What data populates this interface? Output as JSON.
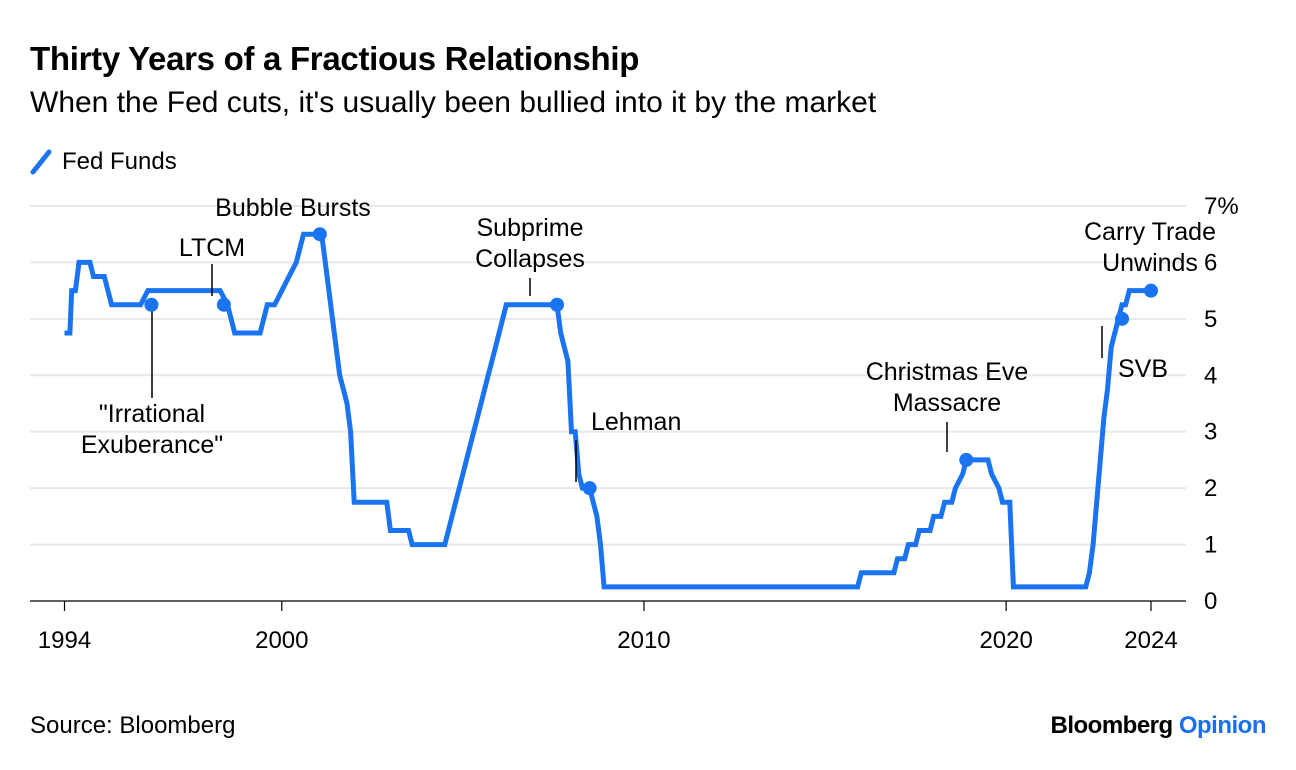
{
  "title": "Thirty Years of a Fractious Relationship",
  "subtitle": "When the Fed cuts, it's usually been bullied into it by the market",
  "legend_label": "Fed Funds",
  "source": "Source: Bloomberg",
  "brand": {
    "part1": "Bloomberg",
    "part2": "Opinion"
  },
  "colors": {
    "series": "#1a73f0",
    "grid": "#e8e8e8",
    "brand_accent": "#1a6ff0"
  },
  "chart_data": {
    "type": "line",
    "xlabel": "",
    "ylabel": "",
    "xlim": [
      1994,
      2025
    ],
    "ylim": [
      0,
      7
    ],
    "x_ticks": [
      1994,
      2000,
      2010,
      2020,
      2024
    ],
    "x_tick_labels": [
      "1994",
      "2000",
      "2010",
      "2020",
      "2024"
    ],
    "y_ticks": [
      0,
      1,
      2,
      3,
      4,
      5,
      6,
      7
    ],
    "y_tick_labels": [
      "0",
      "1",
      "2",
      "3",
      "4",
      "5",
      "6",
      "7%"
    ],
    "y_axis_side": "right",
    "grid": true,
    "series": [
      {
        "name": "Fed Funds",
        "x": [
          1994.0,
          1994.15,
          1994.2,
          1994.3,
          1994.4,
          1994.5,
          1994.7,
          1994.8,
          1995.1,
          1995.3,
          1995.5,
          1995.8,
          1996.1,
          1996.3,
          1997.2,
          1997.3,
          1998.3,
          1998.5,
          1998.6,
          1998.7,
          1998.8,
          1998.9,
          1999.4,
          1999.5,
          1999.6,
          1999.8,
          2000.0,
          2000.2,
          2000.4,
          2000.6,
          2000.8,
          2001.0,
          2001.1,
          2001.2,
          2001.3,
          2001.4,
          2001.5,
          2001.6,
          2001.7,
          2001.8,
          2001.9,
          2002.0,
          2002.9,
          2003.0,
          2003.5,
          2003.6,
          2004.5,
          2004.6,
          2004.7,
          2004.8,
          2004.9,
          2005.0,
          2005.1,
          2005.2,
          2005.3,
          2005.4,
          2005.5,
          2005.6,
          2005.7,
          2005.8,
          2005.9,
          2006.0,
          2006.1,
          2006.2,
          2006.3,
          2006.4,
          2006.5,
          2007.6,
          2007.7,
          2007.8,
          2007.9,
          2008.0,
          2008.1,
          2008.2,
          2008.3,
          2008.4,
          2008.5,
          2008.7,
          2008.8,
          2008.9,
          2008.95,
          2009.0,
          2015.9,
          2016.0,
          2016.9,
          2017.0,
          2017.2,
          2017.3,
          2017.5,
          2017.6,
          2017.9,
          2018.0,
          2018.2,
          2018.3,
          2018.5,
          2018.6,
          2018.8,
          2018.9,
          2019.0,
          2019.5,
          2019.6,
          2019.8,
          2019.9,
          2020.1,
          2020.2,
          2022.2,
          2022.3,
          2022.4,
          2022.5,
          2022.6,
          2022.7,
          2022.8,
          2022.9,
          2023.0,
          2023.1,
          2023.2,
          2023.3,
          2023.4,
          2023.5,
          2023.6,
          2024.0
        ],
        "values": [
          4.75,
          4.75,
          5.5,
          5.5,
          6.0,
          6.0,
          6.0,
          5.75,
          5.75,
          5.25,
          5.25,
          5.25,
          5.25,
          5.5,
          5.5,
          5.5,
          5.5,
          5.25,
          5.0,
          4.75,
          4.75,
          4.75,
          4.75,
          5.0,
          5.25,
          5.25,
          5.5,
          5.75,
          6.0,
          6.5,
          6.5,
          6.5,
          6.5,
          6.0,
          5.5,
          5.0,
          4.5,
          4.0,
          3.75,
          3.5,
          3.0,
          1.75,
          1.75,
          1.25,
          1.25,
          1.0,
          1.0,
          1.25,
          1.5,
          1.75,
          2.0,
          2.25,
          2.5,
          2.75,
          3.0,
          3.25,
          3.5,
          3.75,
          4.0,
          4.25,
          4.5,
          4.75,
          5.0,
          5.25,
          5.25,
          5.25,
          5.25,
          5.25,
          4.75,
          4.5,
          4.25,
          3.0,
          3.0,
          2.25,
          2.0,
          2.0,
          2.0,
          1.5,
          1.0,
          0.25,
          0.25,
          0.25,
          0.25,
          0.5,
          0.5,
          0.75,
          0.75,
          1.0,
          1.0,
          1.25,
          1.25,
          1.5,
          1.5,
          1.75,
          1.75,
          2.0,
          2.25,
          2.5,
          2.5,
          2.5,
          2.25,
          2.0,
          1.75,
          1.75,
          0.25,
          0.25,
          0.5,
          1.0,
          1.75,
          2.5,
          3.25,
          3.75,
          4.5,
          4.75,
          5.0,
          5.25,
          5.25,
          5.5,
          5.5,
          5.5,
          5.5
        ]
      }
    ],
    "annotations": [
      {
        "label": "\"Irrational Exuberance\"",
        "x": 1996.4,
        "y": 5.25,
        "placement": "below"
      },
      {
        "label": "LTCM",
        "x": 1998.4,
        "y": 5.25,
        "placement": "above"
      },
      {
        "label": "Bubble Bursts",
        "x": 2001.05,
        "y": 6.5,
        "placement": "above"
      },
      {
        "label": "Subprime Collapses",
        "x": 2007.6,
        "y": 5.25,
        "placement": "above"
      },
      {
        "label": "Lehman",
        "x": 2008.5,
        "y": 2.0,
        "placement": "above-right"
      },
      {
        "label": "Christmas Eve Massacre",
        "x": 2018.9,
        "y": 2.5,
        "placement": "above"
      },
      {
        "label": "SVB",
        "x": 2023.2,
        "y": 5.0,
        "placement": "below-right"
      },
      {
        "label": "Carry Trade Unwinds",
        "x": 2024.0,
        "y": 5.5,
        "placement": "above"
      }
    ]
  }
}
